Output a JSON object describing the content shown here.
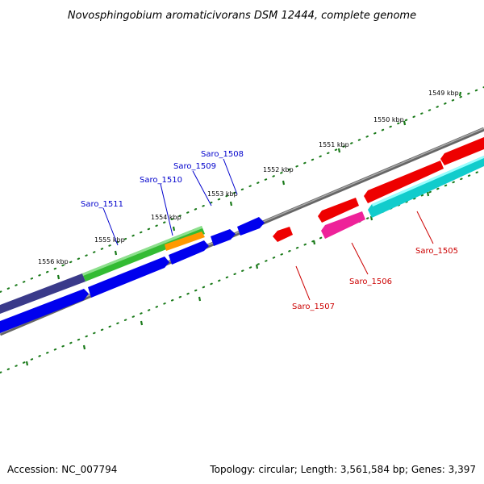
{
  "title": "Novosphingobium aromaticivorans DSM 12444, complete genome",
  "footer": {
    "accession": "Accession: NC_007794",
    "summary": "Topology: circular; Length: 3,561,584 bp; Genes: 3,397"
  },
  "kbp_labels": [
    "1549 kbp",
    "1550 kbp",
    "1551 kbp",
    "1552 kbp",
    "1553 kbp",
    "1554 kbp",
    "1555 kbp",
    "1556 kbp"
  ],
  "genes_forward": [
    "Saro_1511",
    "Saro_1510",
    "Saro_1509",
    "Saro_1508"
  ],
  "genes_reverse": [
    "Saro_1507",
    "Saro_1506",
    "Saro_1505"
  ],
  "colors": {
    "forward_label": "#0000cc",
    "reverse_label": "#cc0000",
    "tick": "#1a7a1a",
    "backbone": "#7a7a7a",
    "blue_cds": "#0000ee",
    "red_cds": "#ee0000",
    "green_cds": "#33bb33",
    "orange_cds": "#ff9900",
    "navy_cds": "#3a3a8a",
    "magenta_cds": "#ee2299",
    "cyan_cds": "#11cccc"
  }
}
